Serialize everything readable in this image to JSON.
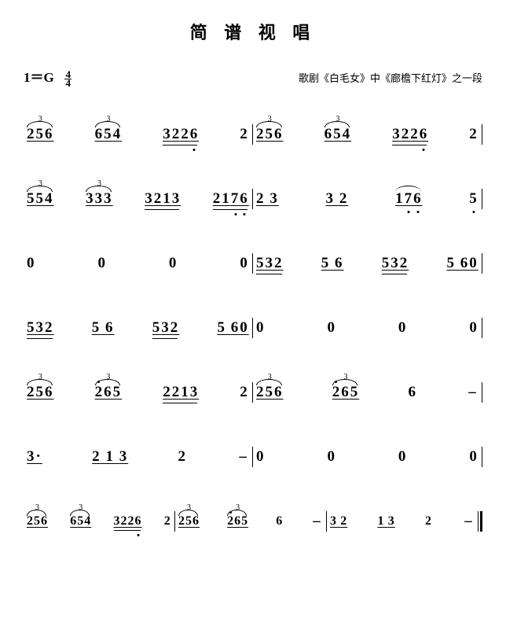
{
  "title": "简 谱 视 唱",
  "key": "1＝G",
  "time_num": "4",
  "time_den": "4",
  "subtitle": "歌剧《白毛女》中《廊檐下红灯》之一段",
  "colors": {
    "fg": "#000000",
    "bg": "#ffffff"
  },
  "font": {
    "title_size": 22,
    "notation_size": 19,
    "subtitle_size": 13
  },
  "lines": [
    {
      "measures": [
        {
          "beats": [
            {
              "notes": "256",
              "under": 1,
              "trip": true
            },
            {
              "notes": "654",
              "under": 1,
              "trip": true,
              "arc": true
            },
            {
              "notes": "3226",
              "under": 2,
              "low_dots": [
                3
              ]
            },
            {
              "notes": "2",
              "under": 0
            }
          ]
        },
        {
          "beats": [
            {
              "notes": "256",
              "under": 1,
              "trip": true
            },
            {
              "notes": "654",
              "under": 1,
              "trip": true,
              "arc": true
            },
            {
              "notes": "3226",
              "under": 2,
              "low_dots": [
                3
              ]
            },
            {
              "notes": "2",
              "under": 0
            }
          ]
        }
      ]
    },
    {
      "measures": [
        {
          "beats": [
            {
              "notes": "554",
              "under": 1,
              "trip": true,
              "arc": true
            },
            {
              "notes": "333",
              "under": 1,
              "trip": true,
              "arc": true
            },
            {
              "notes": "3213",
              "under": 2
            },
            {
              "notes": "2176",
              "under": 2,
              "low_dots": [
                2,
                3
              ]
            }
          ]
        },
        {
          "beats": [
            {
              "notes": "2 3",
              "under": 1
            },
            {
              "notes": "3 2",
              "under": 1
            },
            {
              "notes": "176",
              "under": 1,
              "arc": true,
              "low_dots": [
                1,
                2
              ]
            },
            {
              "notes": "5",
              "under": 0,
              "low_dots": [
                0
              ]
            }
          ]
        }
      ]
    },
    {
      "measures": [
        {
          "beats": [
            {
              "notes": "0",
              "under": 0
            },
            {
              "notes": "0",
              "under": 0
            },
            {
              "notes": "0",
              "under": 0
            },
            {
              "notes": "0",
              "under": 0
            }
          ]
        },
        {
          "beats": [
            {
              "notes": "532",
              "under": 2
            },
            {
              "notes": "5 6",
              "under": 1
            },
            {
              "notes": "532",
              "under": 2
            },
            {
              "notes": "5 60",
              "under": 1
            }
          ]
        }
      ]
    },
    {
      "measures": [
        {
          "beats": [
            {
              "notes": "532",
              "under": 2
            },
            {
              "notes": "5 6",
              "under": 1
            },
            {
              "notes": "532",
              "under": 2
            },
            {
              "notes": "5 60",
              "under": 1
            }
          ]
        },
        {
          "beats": [
            {
              "notes": "0",
              "under": 0
            },
            {
              "notes": "0",
              "under": 0
            },
            {
              "notes": "0",
              "under": 0
            },
            {
              "notes": "0",
              "under": 0
            }
          ]
        }
      ]
    },
    {
      "measures": [
        {
          "beats": [
            {
              "notes": "256",
              "under": 1,
              "trip": true
            },
            {
              "notes": "265",
              "under": 1,
              "trip": true,
              "topdot": true
            },
            {
              "notes": "2213",
              "under": 2
            },
            {
              "notes": "2",
              "under": 0
            }
          ]
        },
        {
          "beats": [
            {
              "notes": "256",
              "under": 1,
              "trip": true
            },
            {
              "notes": "265",
              "under": 1,
              "trip": true,
              "topdot": true
            },
            {
              "notes": "6",
              "under": 0
            },
            {
              "dash": true
            }
          ]
        }
      ]
    },
    {
      "measures": [
        {
          "beats": [
            {
              "notes": "3·",
              "under": 1,
              "dotR": true
            },
            {
              "notes": "2 1 3",
              "under": 1,
              "sp": true
            },
            {
              "notes": "2",
              "under": 0
            },
            {
              "dash": true
            }
          ]
        },
        {
          "beats": [
            {
              "notes": "0",
              "under": 0
            },
            {
              "notes": "0",
              "under": 0
            },
            {
              "notes": "0",
              "under": 0
            },
            {
              "notes": "0",
              "under": 0
            }
          ]
        }
      ]
    },
    {
      "small": true,
      "measures": [
        {
          "beats": [
            {
              "notes": "256",
              "under": 1,
              "trip": true,
              "arc": true
            },
            {
              "notes": "654",
              "under": 1,
              "trip": true,
              "arc": true
            },
            {
              "notes": "3226",
              "under": 2,
              "low_dots": [
                3
              ]
            },
            {
              "notes": "2",
              "under": 0
            }
          ]
        },
        {
          "beats": [
            {
              "notes": "256",
              "under": 1,
              "trip": true,
              "arc": true
            },
            {
              "notes": "265",
              "under": 1,
              "trip": true,
              "topdot": true
            },
            {
              "notes": "6",
              "under": 0
            },
            {
              "dash": true
            }
          ]
        },
        {
          "beats": [
            {
              "notes": "3 2",
              "under": 1
            },
            {
              "notes": "1 3",
              "under": 1
            },
            {
              "notes": "2",
              "under": 0
            },
            {
              "dash": true
            }
          ],
          "end": "double"
        }
      ]
    }
  ]
}
